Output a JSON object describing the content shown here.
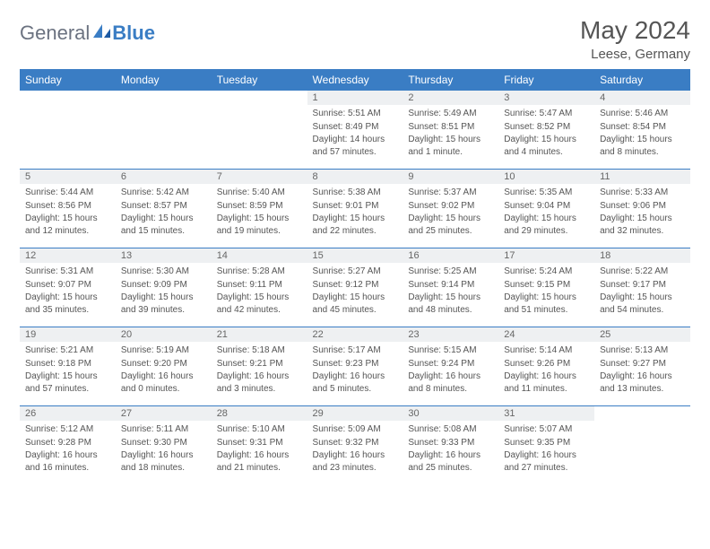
{
  "brand": {
    "general": "General",
    "blue": "Blue"
  },
  "title": "May 2024",
  "location": "Leese, Germany",
  "colors": {
    "header_bg": "#3a7dc4",
    "header_text": "#ffffff",
    "rule": "#3a7dc4",
    "daynum_bg": "#eef0f2",
    "body_text": "#555555",
    "logo_gray": "#6b7280",
    "logo_blue": "#3a7dc4",
    "page_bg": "#ffffff"
  },
  "fonts": {
    "title_pt": 28,
    "location_pt": 15,
    "dow_pt": 12,
    "daynum_pt": 11,
    "body_pt": 10
  },
  "days_of_week": [
    "Sunday",
    "Monday",
    "Tuesday",
    "Wednesday",
    "Thursday",
    "Friday",
    "Saturday"
  ],
  "weeks": [
    [
      null,
      null,
      null,
      {
        "n": "1",
        "sunrise": "5:51 AM",
        "sunset": "8:49 PM",
        "daylight": "14 hours and 57 minutes."
      },
      {
        "n": "2",
        "sunrise": "5:49 AM",
        "sunset": "8:51 PM",
        "daylight": "15 hours and 1 minute."
      },
      {
        "n": "3",
        "sunrise": "5:47 AM",
        "sunset": "8:52 PM",
        "daylight": "15 hours and 4 minutes."
      },
      {
        "n": "4",
        "sunrise": "5:46 AM",
        "sunset": "8:54 PM",
        "daylight": "15 hours and 8 minutes."
      }
    ],
    [
      {
        "n": "5",
        "sunrise": "5:44 AM",
        "sunset": "8:56 PM",
        "daylight": "15 hours and 12 minutes."
      },
      {
        "n": "6",
        "sunrise": "5:42 AM",
        "sunset": "8:57 PM",
        "daylight": "15 hours and 15 minutes."
      },
      {
        "n": "7",
        "sunrise": "5:40 AM",
        "sunset": "8:59 PM",
        "daylight": "15 hours and 19 minutes."
      },
      {
        "n": "8",
        "sunrise": "5:38 AM",
        "sunset": "9:01 PM",
        "daylight": "15 hours and 22 minutes."
      },
      {
        "n": "9",
        "sunrise": "5:37 AM",
        "sunset": "9:02 PM",
        "daylight": "15 hours and 25 minutes."
      },
      {
        "n": "10",
        "sunrise": "5:35 AM",
        "sunset": "9:04 PM",
        "daylight": "15 hours and 29 minutes."
      },
      {
        "n": "11",
        "sunrise": "5:33 AM",
        "sunset": "9:06 PM",
        "daylight": "15 hours and 32 minutes."
      }
    ],
    [
      {
        "n": "12",
        "sunrise": "5:31 AM",
        "sunset": "9:07 PM",
        "daylight": "15 hours and 35 minutes."
      },
      {
        "n": "13",
        "sunrise": "5:30 AM",
        "sunset": "9:09 PM",
        "daylight": "15 hours and 39 minutes."
      },
      {
        "n": "14",
        "sunrise": "5:28 AM",
        "sunset": "9:11 PM",
        "daylight": "15 hours and 42 minutes."
      },
      {
        "n": "15",
        "sunrise": "5:27 AM",
        "sunset": "9:12 PM",
        "daylight": "15 hours and 45 minutes."
      },
      {
        "n": "16",
        "sunrise": "5:25 AM",
        "sunset": "9:14 PM",
        "daylight": "15 hours and 48 minutes."
      },
      {
        "n": "17",
        "sunrise": "5:24 AM",
        "sunset": "9:15 PM",
        "daylight": "15 hours and 51 minutes."
      },
      {
        "n": "18",
        "sunrise": "5:22 AM",
        "sunset": "9:17 PM",
        "daylight": "15 hours and 54 minutes."
      }
    ],
    [
      {
        "n": "19",
        "sunrise": "5:21 AM",
        "sunset": "9:18 PM",
        "daylight": "15 hours and 57 minutes."
      },
      {
        "n": "20",
        "sunrise": "5:19 AM",
        "sunset": "9:20 PM",
        "daylight": "16 hours and 0 minutes."
      },
      {
        "n": "21",
        "sunrise": "5:18 AM",
        "sunset": "9:21 PM",
        "daylight": "16 hours and 3 minutes."
      },
      {
        "n": "22",
        "sunrise": "5:17 AM",
        "sunset": "9:23 PM",
        "daylight": "16 hours and 5 minutes."
      },
      {
        "n": "23",
        "sunrise": "5:15 AM",
        "sunset": "9:24 PM",
        "daylight": "16 hours and 8 minutes."
      },
      {
        "n": "24",
        "sunrise": "5:14 AM",
        "sunset": "9:26 PM",
        "daylight": "16 hours and 11 minutes."
      },
      {
        "n": "25",
        "sunrise": "5:13 AM",
        "sunset": "9:27 PM",
        "daylight": "16 hours and 13 minutes."
      }
    ],
    [
      {
        "n": "26",
        "sunrise": "5:12 AM",
        "sunset": "9:28 PM",
        "daylight": "16 hours and 16 minutes."
      },
      {
        "n": "27",
        "sunrise": "5:11 AM",
        "sunset": "9:30 PM",
        "daylight": "16 hours and 18 minutes."
      },
      {
        "n": "28",
        "sunrise": "5:10 AM",
        "sunset": "9:31 PM",
        "daylight": "16 hours and 21 minutes."
      },
      {
        "n": "29",
        "sunrise": "5:09 AM",
        "sunset": "9:32 PM",
        "daylight": "16 hours and 23 minutes."
      },
      {
        "n": "30",
        "sunrise": "5:08 AM",
        "sunset": "9:33 PM",
        "daylight": "16 hours and 25 minutes."
      },
      {
        "n": "31",
        "sunrise": "5:07 AM",
        "sunset": "9:35 PM",
        "daylight": "16 hours and 27 minutes."
      },
      null
    ]
  ],
  "labels": {
    "sunrise": "Sunrise:",
    "sunset": "Sunset:",
    "daylight": "Daylight:"
  }
}
